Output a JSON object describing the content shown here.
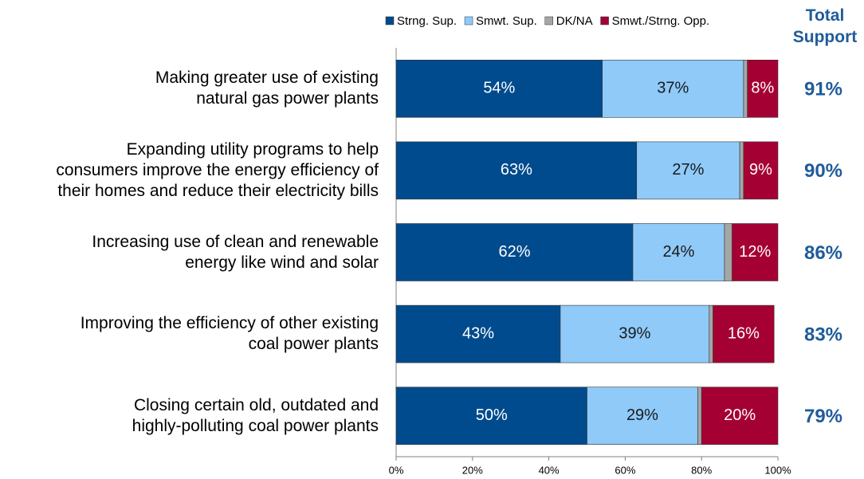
{
  "chart_data": {
    "type": "stacked-barh",
    "categories": [
      "Making greater use of existing\nnatural gas power plants",
      "Expanding utility programs to help\nconsumers improve the energy efficiency of\ntheir homes and reduce their electricity bills",
      "Increasing use of clean and renewable\nenergy like wind and solar",
      "Improving the efficiency of other existing\ncoal power plants",
      "Closing certain old, outdated and\nhighly-polluting coal power plants"
    ],
    "series": [
      {
        "name": "Strng. Sup.",
        "color": "#004b8d",
        "label_color": "#ffffff",
        "values": [
          54,
          63,
          62,
          43,
          50
        ],
        "value_labels": [
          "54%",
          "63%",
          "62%",
          "43%",
          "50%"
        ]
      },
      {
        "name": "Smwt. Sup.",
        "color": "#8fcaf9",
        "label_color": "#1a1a1a",
        "values": [
          37,
          27,
          24,
          39,
          29
        ],
        "value_labels": [
          "37%",
          "27%",
          "24%",
          "39%",
          "29%"
        ]
      },
      {
        "name": "DK/NA",
        "color": "#a6a6a6",
        "values": [
          1,
          1,
          2,
          1,
          1
        ]
      },
      {
        "name": "Smwt./Strng. Opp.",
        "color": "#a50034",
        "label_color": "#ffffff",
        "values": [
          8,
          9,
          12,
          16,
          20
        ],
        "value_labels": [
          "8%",
          "9%",
          "12%",
          "16%",
          "20%"
        ]
      }
    ],
    "totals": {
      "title": "Total Support",
      "color": "#1f5c99",
      "values": [
        91,
        90,
        86,
        83,
        79
      ],
      "value_labels": [
        "91%",
        "90%",
        "86%",
        "83%",
        "79%"
      ]
    },
    "xlim": [
      0,
      100
    ],
    "xticks": [
      {
        "value": 0,
        "label": "0%"
      },
      {
        "value": 20,
        "label": "20%"
      },
      {
        "value": 40,
        "label": "40%"
      },
      {
        "value": 60,
        "label": "60%"
      },
      {
        "value": 80,
        "label": "80%"
      },
      {
        "value": 100,
        "label": "100%"
      }
    ]
  }
}
